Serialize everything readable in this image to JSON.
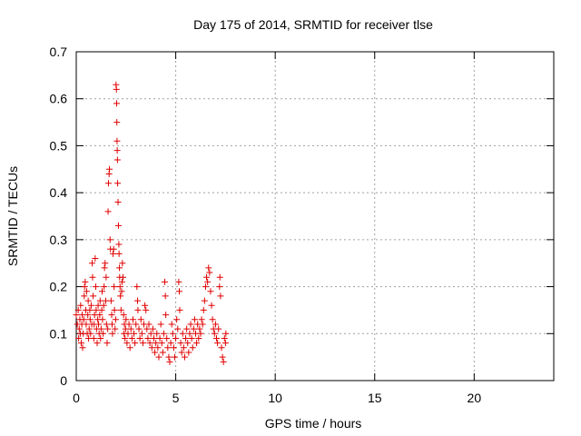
{
  "chart_data": {
    "type": "scatter",
    "title": "Day 175 of 2014, SRMTID for receiver tlse",
    "xlabel": "GPS time / hours",
    "ylabel": "SRMTID / TECUs",
    "xlim": [
      0,
      24
    ],
    "ylim": [
      0,
      0.7
    ],
    "x_ticks": [
      0,
      5,
      10,
      15,
      20
    ],
    "x_tick_labels": [
      "0",
      "5",
      "10",
      "15",
      "20"
    ],
    "y_ticks": [
      0,
      0.1,
      0.2,
      0.3,
      0.4,
      0.5,
      0.6,
      0.7
    ],
    "y_tick_labels": [
      "0",
      "0.1",
      "0.2",
      "0.3",
      "0.4",
      "0.5",
      "0.6",
      "0.7"
    ],
    "grid": true,
    "marker": "+",
    "color": "#e00000",
    "series": [
      {
        "name": "SRMTID",
        "points": [
          [
            0.0,
            0.14
          ],
          [
            0.05,
            0.12
          ],
          [
            0.1,
            0.15
          ],
          [
            0.12,
            0.09
          ],
          [
            0.15,
            0.11
          ],
          [
            0.18,
            0.13
          ],
          [
            0.2,
            0.1
          ],
          [
            0.22,
            0.16
          ],
          [
            0.25,
            0.08
          ],
          [
            0.28,
            0.12
          ],
          [
            0.3,
            0.14
          ],
          [
            0.32,
            0.07
          ],
          [
            0.35,
            0.1
          ],
          [
            0.38,
            0.13
          ],
          [
            0.4,
            0.18
          ],
          [
            0.42,
            0.2
          ],
          [
            0.45,
            0.21
          ],
          [
            0.48,
            0.15
          ],
          [
            0.5,
            0.12
          ],
          [
            0.52,
            0.19
          ],
          [
            0.55,
            0.1
          ],
          [
            0.58,
            0.14
          ],
          [
            0.6,
            0.17
          ],
          [
            0.62,
            0.09
          ],
          [
            0.65,
            0.11
          ],
          [
            0.68,
            0.15
          ],
          [
            0.7,
            0.13
          ],
          [
            0.72,
            0.1
          ],
          [
            0.75,
            0.16
          ],
          [
            0.78,
            0.12
          ],
          [
            0.8,
            0.25
          ],
          [
            0.82,
            0.22
          ],
          [
            0.85,
            0.18
          ],
          [
            0.88,
            0.09
          ],
          [
            0.9,
            0.12
          ],
          [
            0.92,
            0.14
          ],
          [
            0.95,
            0.26
          ],
          [
            0.98,
            0.2
          ],
          [
            1.0,
            0.15
          ],
          [
            1.02,
            0.11
          ],
          [
            1.05,
            0.08
          ],
          [
            1.08,
            0.13
          ],
          [
            1.1,
            0.16
          ],
          [
            1.12,
            0.12
          ],
          [
            1.15,
            0.1
          ],
          [
            1.18,
            0.14
          ],
          [
            1.2,
            0.17
          ],
          [
            1.22,
            0.09
          ],
          [
            1.25,
            0.11
          ],
          [
            1.28,
            0.15
          ],
          [
            1.3,
            0.19
          ],
          [
            1.32,
            0.13
          ],
          [
            1.35,
            0.1
          ],
          [
            1.38,
            0.16
          ],
          [
            1.4,
            0.2
          ],
          [
            1.42,
            0.24
          ],
          [
            1.45,
            0.25
          ],
          [
            1.48,
            0.17
          ],
          [
            1.5,
            0.22
          ],
          [
            1.52,
            0.12
          ],
          [
            1.55,
            0.08
          ],
          [
            1.58,
            0.11
          ],
          [
            1.6,
            0.36
          ],
          [
            1.62,
            0.42
          ],
          [
            1.65,
            0.44
          ],
          [
            1.67,
            0.45
          ],
          [
            1.7,
            0.3
          ],
          [
            1.72,
            0.28
          ],
          [
            1.75,
            0.17
          ],
          [
            1.78,
            0.14
          ],
          [
            1.8,
            0.12
          ],
          [
            1.82,
            0.1
          ],
          [
            1.85,
            0.27
          ],
          [
            1.88,
            0.28
          ],
          [
            1.9,
            0.2
          ],
          [
            1.92,
            0.15
          ],
          [
            1.95,
            0.11
          ],
          [
            1.98,
            0.13
          ],
          [
            2.0,
            0.63
          ],
          [
            2.02,
            0.62
          ],
          [
            2.03,
            0.59
          ],
          [
            2.04,
            0.55
          ],
          [
            2.05,
            0.51
          ],
          [
            2.06,
            0.49
          ],
          [
            2.07,
            0.47
          ],
          [
            2.08,
            0.42
          ],
          [
            2.1,
            0.38
          ],
          [
            2.12,
            0.33
          ],
          [
            2.14,
            0.29
          ],
          [
            2.15,
            0.27
          ],
          [
            2.17,
            0.24
          ],
          [
            2.18,
            0.22
          ],
          [
            2.2,
            0.2
          ],
          [
            2.22,
            0.18
          ],
          [
            2.25,
            0.15
          ],
          [
            2.28,
            0.19
          ],
          [
            2.3,
            0.21
          ],
          [
            2.32,
            0.25
          ],
          [
            2.35,
            0.22
          ],
          [
            2.38,
            0.14
          ],
          [
            2.4,
            0.1
          ],
          [
            2.42,
            0.12
          ],
          [
            2.45,
            0.09
          ],
          [
            2.48,
            0.11
          ],
          [
            2.5,
            0.13
          ],
          [
            2.55,
            0.08
          ],
          [
            2.6,
            0.1
          ],
          [
            2.65,
            0.12
          ],
          [
            2.7,
            0.07
          ],
          [
            2.75,
            0.11
          ],
          [
            2.8,
            0.09
          ],
          [
            2.85,
            0.13
          ],
          [
            2.9,
            0.1
          ],
          [
            2.95,
            0.08
          ],
          [
            3.0,
            0.12
          ],
          [
            3.05,
            0.2
          ],
          [
            3.08,
            0.17
          ],
          [
            3.1,
            0.15
          ],
          [
            3.15,
            0.11
          ],
          [
            3.2,
            0.09
          ],
          [
            3.25,
            0.13
          ],
          [
            3.3,
            0.1
          ],
          [
            3.35,
            0.08
          ],
          [
            3.4,
            0.12
          ],
          [
            3.45,
            0.16
          ],
          [
            3.5,
            0.15
          ],
          [
            3.55,
            0.11
          ],
          [
            3.6,
            0.09
          ],
          [
            3.65,
            0.12
          ],
          [
            3.7,
            0.08
          ],
          [
            3.75,
            0.1
          ],
          [
            3.8,
            0.07
          ],
          [
            3.85,
            0.11
          ],
          [
            3.9,
            0.09
          ],
          [
            3.95,
            0.06
          ],
          [
            4.0,
            0.08
          ],
          [
            4.05,
            0.1
          ],
          [
            4.1,
            0.07
          ],
          [
            4.15,
            0.05
          ],
          [
            4.2,
            0.09
          ],
          [
            4.25,
            0.12
          ],
          [
            4.3,
            0.08
          ],
          [
            4.35,
            0.06
          ],
          [
            4.4,
            0.1
          ],
          [
            4.45,
            0.21
          ],
          [
            4.48,
            0.18
          ],
          [
            4.5,
            0.14
          ],
          [
            4.55,
            0.09
          ],
          [
            4.6,
            0.07
          ],
          [
            4.65,
            0.05
          ],
          [
            4.7,
            0.04
          ],
          [
            4.75,
            0.08
          ],
          [
            4.8,
            0.12
          ],
          [
            4.85,
            0.1
          ],
          [
            4.9,
            0.07
          ],
          [
            4.95,
            0.05
          ],
          [
            5.0,
            0.09
          ],
          [
            5.05,
            0.13
          ],
          [
            5.1,
            0.11
          ],
          [
            5.15,
            0.21
          ],
          [
            5.18,
            0.19
          ],
          [
            5.2,
            0.15
          ],
          [
            5.25,
            0.08
          ],
          [
            5.3,
            0.06
          ],
          [
            5.35,
            0.1
          ],
          [
            5.4,
            0.07
          ],
          [
            5.45,
            0.05
          ],
          [
            5.5,
            0.09
          ],
          [
            5.55,
            0.11
          ],
          [
            5.6,
            0.08
          ],
          [
            5.65,
            0.06
          ],
          [
            5.7,
            0.1
          ],
          [
            5.75,
            0.12
          ],
          [
            5.8,
            0.09
          ],
          [
            5.85,
            0.07
          ],
          [
            5.9,
            0.11
          ],
          [
            5.95,
            0.13
          ],
          [
            6.0,
            0.1
          ],
          [
            6.05,
            0.08
          ],
          [
            6.1,
            0.12
          ],
          [
            6.15,
            0.09
          ],
          [
            6.2,
            0.11
          ],
          [
            6.25,
            0.1
          ],
          [
            6.3,
            0.13
          ],
          [
            6.35,
            0.12
          ],
          [
            6.4,
            0.15
          ],
          [
            6.45,
            0.17
          ],
          [
            6.5,
            0.2
          ],
          [
            6.55,
            0.22
          ],
          [
            6.6,
            0.21
          ],
          [
            6.65,
            0.24
          ],
          [
            6.7,
            0.23
          ],
          [
            6.75,
            0.19
          ],
          [
            6.8,
            0.16
          ],
          [
            6.85,
            0.13
          ],
          [
            6.9,
            0.11
          ],
          [
            6.95,
            0.1
          ],
          [
            7.0,
            0.12
          ],
          [
            7.05,
            0.09
          ],
          [
            7.1,
            0.08
          ],
          [
            7.15,
            0.11
          ],
          [
            7.2,
            0.2
          ],
          [
            7.22,
            0.22
          ],
          [
            7.25,
            0.18
          ],
          [
            7.3,
            0.07
          ],
          [
            7.35,
            0.05
          ],
          [
            7.4,
            0.04
          ],
          [
            7.45,
            0.09
          ],
          [
            7.5,
            0.08
          ],
          [
            7.52,
            0.1
          ]
        ]
      }
    ]
  }
}
